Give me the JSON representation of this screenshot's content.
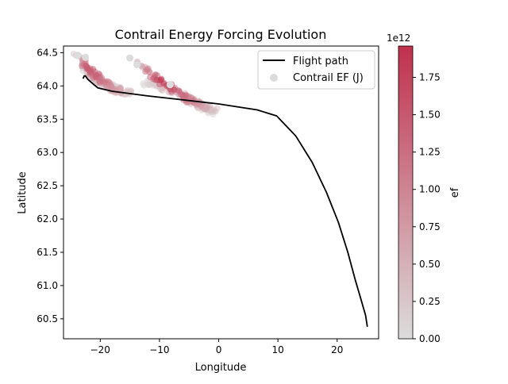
{
  "chart_data": {
    "type": "scatter",
    "title": "Contrail Energy Forcing Evolution",
    "xlabel": "Longitude",
    "ylabel": "Latitude",
    "xlim": [
      -26.2,
      27.0
    ],
    "ylim": [
      60.2,
      64.6
    ],
    "xticks": [
      -20,
      -10,
      0,
      10,
      20
    ],
    "yticks": [
      60.5,
      61.0,
      61.5,
      62.0,
      62.5,
      63.0,
      63.5,
      64.0,
      64.5
    ],
    "xtick_labels": [
      "−20",
      "−10",
      "0",
      "10",
      "20"
    ],
    "ytick_labels": [
      "60.5",
      "61.0",
      "61.5",
      "62.0",
      "62.5",
      "63.0",
      "63.5",
      "64.0",
      "64.5"
    ],
    "grid": false,
    "legend": {
      "position": "top-right",
      "entries": [
        "Flight path",
        "Contrail EF (J)"
      ]
    },
    "series": [
      {
        "name": "Flight path",
        "kind": "line",
        "color": "#000000",
        "points": [
          [
            25.1,
            60.38
          ],
          [
            24.8,
            60.55
          ],
          [
            24.0,
            60.8
          ],
          [
            23.0,
            61.1
          ],
          [
            21.8,
            61.5
          ],
          [
            20.2,
            61.95
          ],
          [
            18.2,
            62.4
          ],
          [
            15.8,
            62.85
          ],
          [
            13.0,
            63.25
          ],
          [
            9.8,
            63.55
          ],
          [
            6.5,
            63.64
          ],
          [
            0.0,
            63.73
          ],
          [
            -6.0,
            63.79
          ],
          [
            -12.0,
            63.85
          ],
          [
            -18.0,
            63.92
          ],
          [
            -20.4,
            63.97
          ],
          [
            -21.2,
            64.03
          ],
          [
            -22.1,
            64.1
          ],
          [
            -22.5,
            64.15
          ],
          [
            -22.7,
            64.15
          ],
          [
            -22.9,
            64.11
          ]
        ]
      },
      {
        "name": "Contrail EF (J)",
        "kind": "scatter",
        "color_by": "ef",
        "bands": [
          {
            "path": [
              [
                -23.8,
                64.45
              ],
              [
                -21.0,
                64.17
              ],
              [
                -18.0,
                63.95
              ],
              [
                -15.0,
                63.9
              ]
            ],
            "peak_ef": 1650000000000.0,
            "peak_at": 0.22,
            "width": 1.4
          },
          {
            "path": [
              [
                -23.0,
                64.28
              ],
              [
                -20.0,
                64.05
              ],
              [
                -17.0,
                63.96
              ]
            ],
            "peak_ef": 450000000000.0,
            "peak_at": 0.3,
            "width": 1.2
          },
          {
            "path": [
              [
                -14.0,
                64.34
              ],
              [
                -10.0,
                64.08
              ],
              [
                -6.0,
                63.85
              ],
              [
                -3.5,
                63.72
              ],
              [
                -0.5,
                63.65
              ]
            ],
            "peak_ef": 1950000000000.0,
            "peak_at": 0.25,
            "width": 1.5
          },
          {
            "path": [
              [
                -12.5,
                64.05
              ],
              [
                -8.0,
                63.95
              ],
              [
                -4.0,
                63.75
              ],
              [
                -1.0,
                63.58
              ]
            ],
            "peak_ef": 550000000000.0,
            "peak_at": 0.4,
            "width": 1.3
          }
        ],
        "highlight_points": [
          [
            -15.0,
            64.42
          ],
          [
            -13.8,
            64.32
          ],
          [
            -8.2,
            64.02
          ],
          [
            -23.8,
            64.46
          ],
          [
            -22.5,
            64.43
          ]
        ]
      }
    ],
    "colorbar": {
      "label": "ef",
      "multiplier": "1e12",
      "min": 0.0,
      "max": 1.96,
      "ticks": [
        0.0,
        0.25,
        0.5,
        0.75,
        1.0,
        1.25,
        1.5,
        1.75
      ],
      "tick_labels": [
        "0.00",
        "0.25",
        "0.50",
        "0.75",
        "1.00",
        "1.25",
        "1.50",
        "1.75"
      ],
      "color_low": "#dcdcdc",
      "color_high": "#c0304d"
    }
  }
}
